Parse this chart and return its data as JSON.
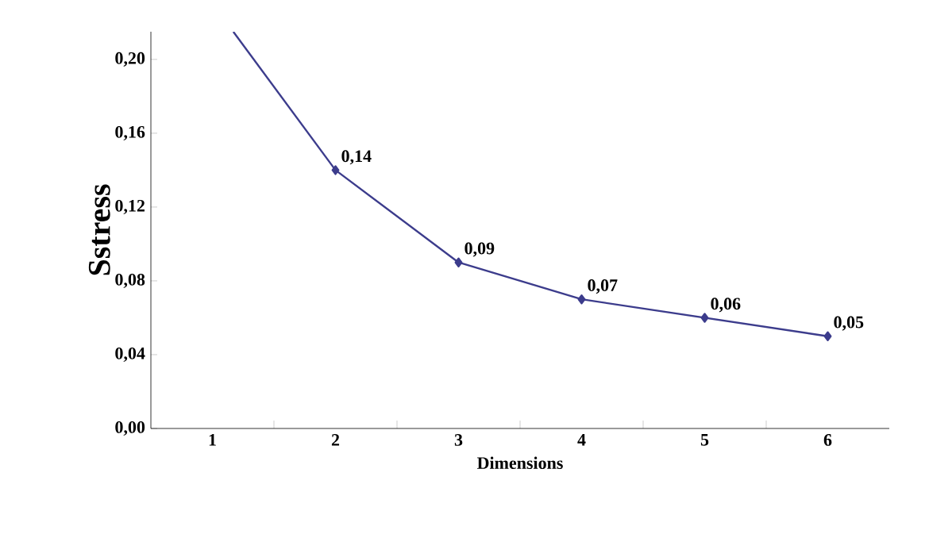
{
  "chart_data": {
    "type": "line",
    "xlabel": "Dimensions",
    "ylabel": "Sstress",
    "xlim": [
      0.5,
      6.5
    ],
    "xticks": [
      1,
      2,
      3,
      4,
      5,
      6
    ],
    "ylim": [
      0,
      0.215
    ],
    "yticks": [
      {
        "value": 0,
        "label": "0,00"
      },
      {
        "value": 0.04,
        "label": "0,04"
      },
      {
        "value": 0.08,
        "label": "0,08"
      },
      {
        "value": 0.12,
        "label": "0,12"
      },
      {
        "value": 0.16,
        "label": "0,16"
      },
      {
        "value": 0.2,
        "label": "0,20"
      }
    ],
    "series": [
      {
        "color": "#3c3c8c",
        "x": [
          1.17,
          2
        ],
        "values": [
          0.215,
          0.14
        ]
      },
      {
        "color": "#3c3c8c",
        "x": [
          2,
          3,
          4,
          5,
          6
        ],
        "values": [
          0.14,
          0.09,
          0.07,
          0.06,
          0.05
        ],
        "marker": "diamond",
        "value_labels": [
          "0,14",
          "0,09",
          "0,07",
          "0,06",
          "0,05"
        ]
      }
    ],
    "grid": false,
    "line_style": "solid"
  }
}
